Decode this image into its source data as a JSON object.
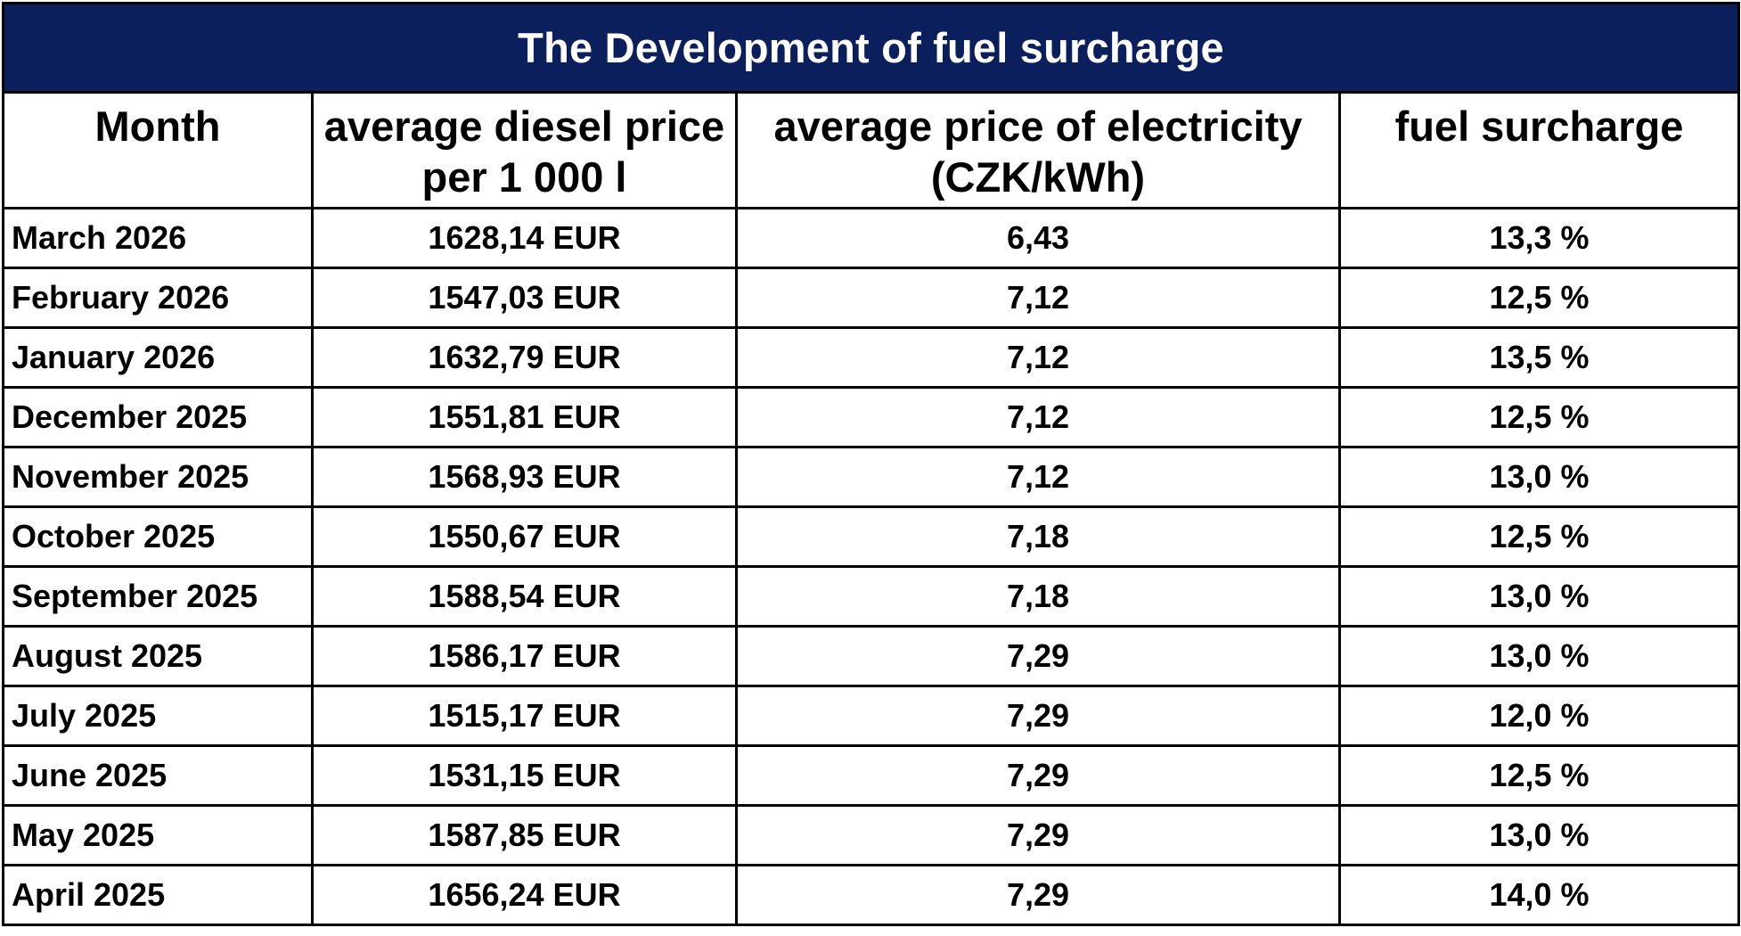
{
  "title": "The Development of fuel surcharge",
  "colors": {
    "title_background": "#0a1f5c",
    "title_text": "#ffffff",
    "border": "#000000"
  },
  "columns": {
    "month": "Month",
    "diesel_line1": "average diesel price",
    "diesel_line2": "per 1 000 l",
    "electricity_line1": "average price of electricity",
    "electricity_line2": "(CZK/kWh)",
    "surcharge": "fuel surcharge"
  },
  "rows": [
    {
      "month": "March 2026",
      "diesel": "1628,14 EUR",
      "electricity": "6,43",
      "surcharge": "13,3 %"
    },
    {
      "month": "February 2026",
      "diesel": "1547,03 EUR",
      "electricity": "7,12",
      "surcharge": "12,5 %"
    },
    {
      "month": "January 2026",
      "diesel": "1632,79 EUR",
      "electricity": "7,12",
      "surcharge": "13,5 %"
    },
    {
      "month": "December 2025",
      "diesel": "1551,81 EUR",
      "electricity": "7,12",
      "surcharge": "12,5 %"
    },
    {
      "month": "November 2025",
      "diesel": "1568,93 EUR",
      "electricity": "7,12",
      "surcharge": "13,0 %"
    },
    {
      "month": "October 2025",
      "diesel": "1550,67 EUR",
      "electricity": "7,18",
      "surcharge": "12,5 %"
    },
    {
      "month": "September 2025",
      "diesel": "1588,54 EUR",
      "electricity": "7,18",
      "surcharge": "13,0 %"
    },
    {
      "month": "August 2025",
      "diesel": "1586,17 EUR",
      "electricity": "7,29",
      "surcharge": "13,0 %"
    },
    {
      "month": "July 2025",
      "diesel": "1515,17 EUR",
      "electricity": "7,29",
      "surcharge": "12,0 %"
    },
    {
      "month": "June 2025",
      "diesel": "1531,15 EUR",
      "electricity": "7,29",
      "surcharge": "12,5 %"
    },
    {
      "month": "May 2025",
      "diesel": "1587,85 EUR",
      "electricity": "7,29",
      "surcharge": "13,0 %"
    },
    {
      "month": "April 2025",
      "diesel": "1656,24 EUR",
      "electricity": "7,29",
      "surcharge": "14,0 %"
    }
  ]
}
